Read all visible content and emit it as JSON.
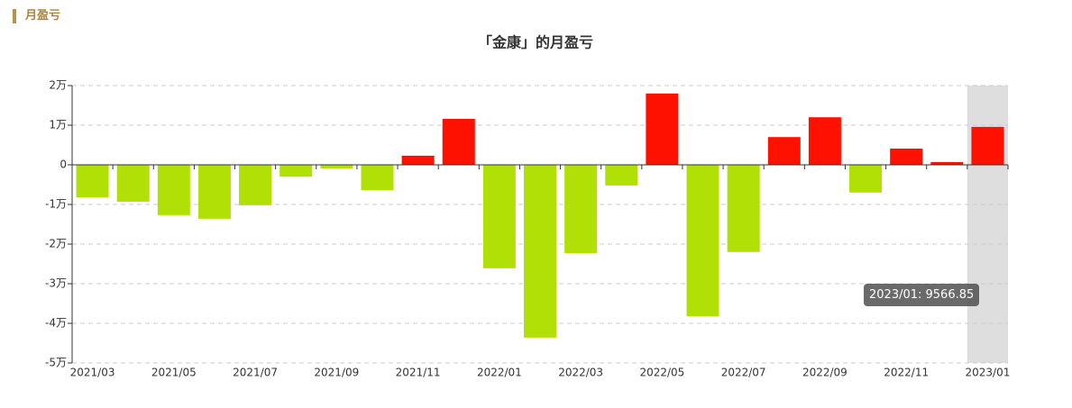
{
  "header": {
    "title": "月盈亏"
  },
  "chart_data": {
    "type": "bar",
    "title": "「金康」的月盈亏",
    "categories": [
      "2021/03",
      null,
      "2021/05",
      null,
      "2021/07",
      null,
      "2021/09",
      null,
      "2021/11",
      null,
      "2022/01",
      null,
      "2022/03",
      null,
      "2022/05",
      null,
      "2022/07",
      null,
      "2022/09",
      null,
      "2022/11",
      null,
      "2023/01"
    ],
    "values": [
      -8200,
      -9300,
      -12700,
      -13600,
      -10200,
      -3000,
      -900,
      -6400,
      2300,
      11600,
      -26100,
      -43600,
      -22300,
      -5200,
      18000,
      -38200,
      -22000,
      7000,
      12000,
      -7000,
      4100,
      700,
      9566.85
    ],
    "positive_color": "#ff1100",
    "negative_color": "#b0e006",
    "ylim": [
      -50000,
      20000
    ],
    "yticks": [
      {
        "value": -50000,
        "label": "-5万"
      },
      {
        "value": -40000,
        "label": "-4万"
      },
      {
        "value": -30000,
        "label": "-3万"
      },
      {
        "value": -20000,
        "label": "-2万"
      },
      {
        "value": -10000,
        "label": "-1万"
      },
      0,
      {
        "value": 10000,
        "label": "1万"
      },
      {
        "value": 20000,
        "label": "2万"
      }
    ],
    "grid": true,
    "tooltip": "2023/01: 9566.85"
  }
}
